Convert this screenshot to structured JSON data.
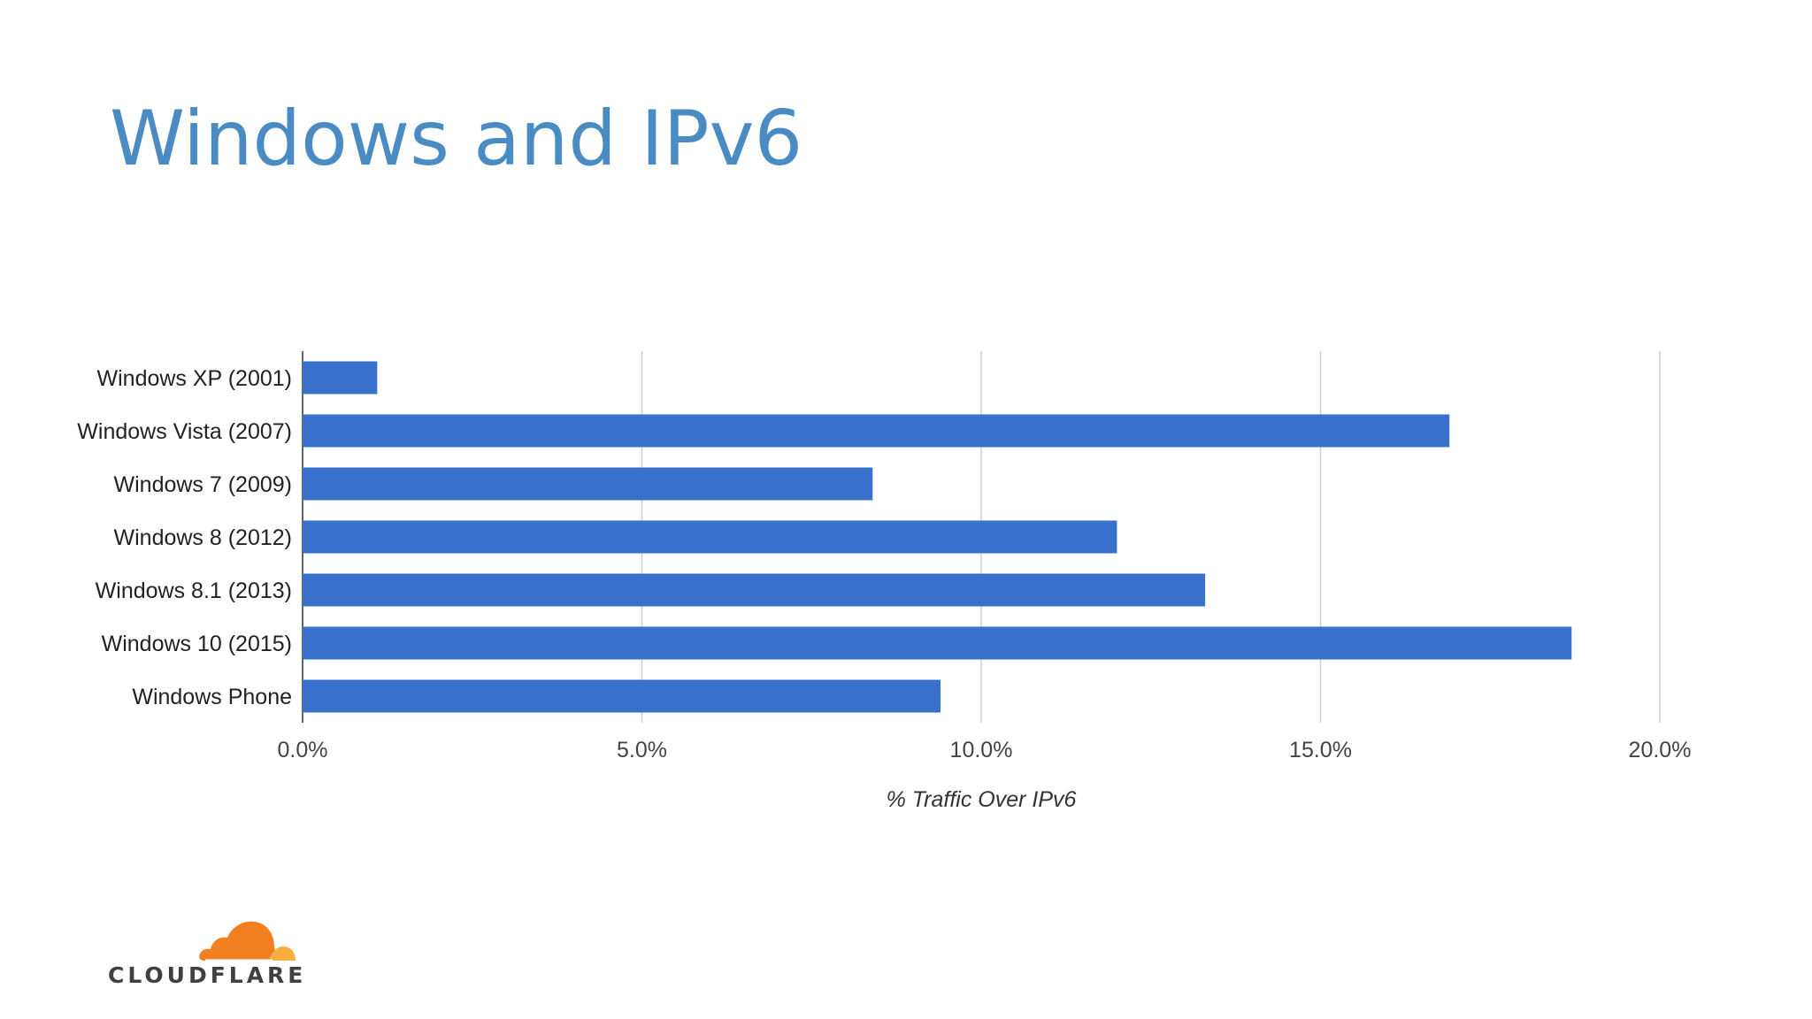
{
  "slide": {
    "title": "Windows and IPv6"
  },
  "brand": {
    "logo_text": "CLOUDFLARE",
    "logo_icon": "cloud-icon",
    "logo_colors": [
      "#f38020",
      "#faae40"
    ]
  },
  "chart_data": {
    "type": "bar",
    "orientation": "horizontal",
    "categories": [
      "Windows XP (2001)",
      "Windows Vista (2007)",
      "Windows 7 (2009)",
      "Windows 8 (2012)",
      "Windows 8.1 (2013)",
      "Windows 10 (2015)",
      "Windows Phone"
    ],
    "values": [
      1.1,
      16.9,
      8.4,
      12.0,
      13.3,
      18.7,
      9.4
    ],
    "xlabel": "% Traffic Over IPv6",
    "ylabel": "",
    "xlim": [
      0,
      20
    ],
    "xticks": [
      0,
      5,
      10,
      15,
      20
    ],
    "xtick_labels": [
      "0.0%",
      "5.0%",
      "10.0%",
      "15.0%",
      "20.0%"
    ],
    "bar_color": "#3870cc",
    "grid": true,
    "legend": "none"
  }
}
